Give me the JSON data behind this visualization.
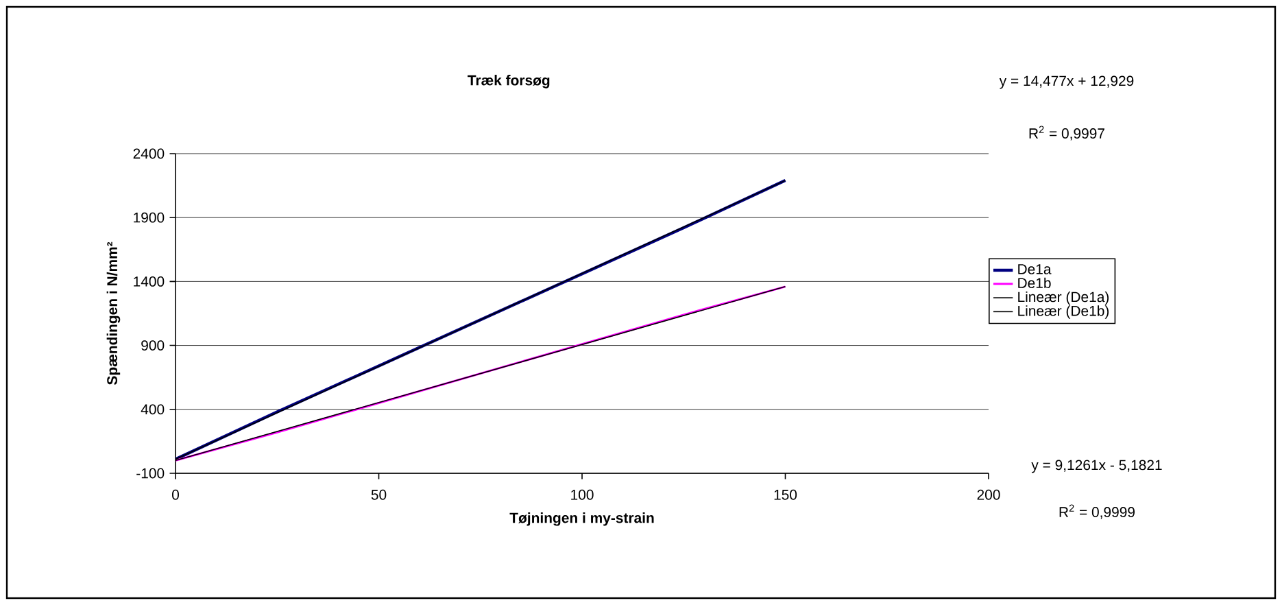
{
  "chart_data": {
    "type": "line",
    "title": "Træk forsøg",
    "xlabel": "Tøjningen i my-strain",
    "ylabel": "Spændingen i N/mm²",
    "series": [
      {
        "name": "De1a",
        "color": "#000080",
        "x": [
          0,
          25,
          50,
          75,
          100,
          125,
          150
        ],
        "values": [
          10,
          380,
          740,
          1100,
          1460,
          1820,
          2190
        ]
      },
      {
        "name": "De1b",
        "color": "#ff00ff",
        "x": [
          0,
          25,
          50,
          75,
          100,
          125,
          150
        ],
        "values": [
          0,
          220,
          450,
          680,
          910,
          1140,
          1360
        ]
      },
      {
        "name": "Lineær (De1a)",
        "color": "#000000",
        "x": [
          0,
          150
        ],
        "values": [
          10,
          2190
        ]
      },
      {
        "name": "Lineær (De1b)",
        "color": "#000000",
        "x": [
          0,
          150
        ],
        "values": [
          0,
          1360
        ]
      }
    ],
    "xlim": [
      0,
      200
    ],
    "xticks": [
      0,
      50,
      100,
      150,
      200
    ],
    "ylim": [
      -100,
      2400
    ],
    "yticks": [
      -100,
      400,
      900,
      1400,
      1900,
      2400
    ],
    "grid": "y",
    "legend": "right",
    "marker": "none",
    "line_style": "solid",
    "annotations": [
      "y = 14,477x + 12,929",
      "R$^{2}$ = 0,9997",
      "y = 9,1261x - 5,1821",
      "R$^{2}$ = 0,9999"
    ]
  }
}
